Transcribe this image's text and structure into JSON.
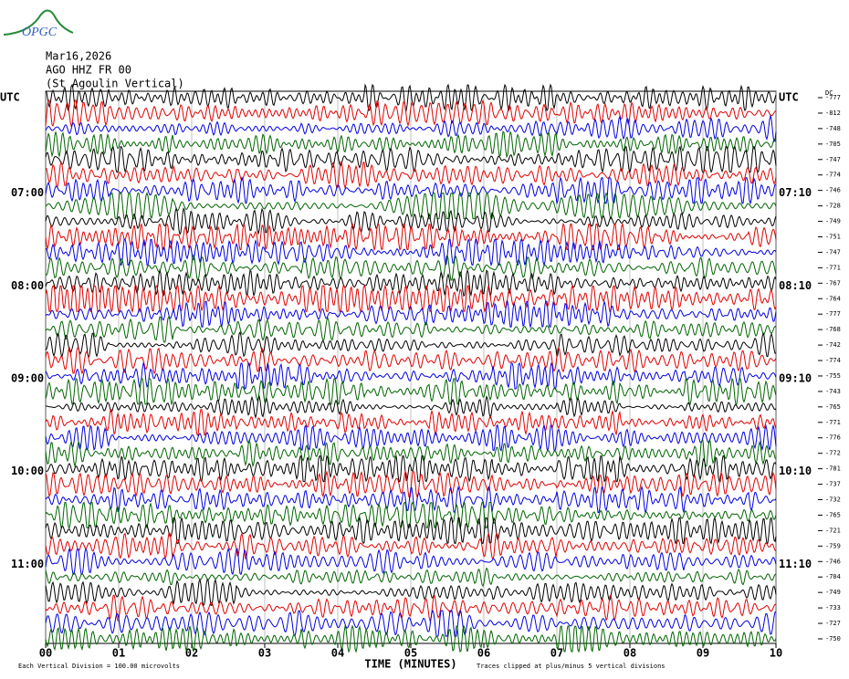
{
  "logo": "OPGC",
  "chart_data": {
    "type": "helicorder",
    "header": [
      "Mar16,2026",
      "AGO HHZ FR 00",
      "(St Agoulin Vertical)"
    ],
    "dc_label": "DC",
    "xlabel": "TIME (MINUTES)",
    "xlim": [
      0,
      10
    ],
    "xticks": [
      {
        "value": 0,
        "label": "00"
      },
      {
        "value": 1,
        "label": "01"
      },
      {
        "value": 2,
        "label": "02"
      },
      {
        "value": 3,
        "label": "03"
      },
      {
        "value": 4,
        "label": "04"
      },
      {
        "value": 5,
        "label": "05"
      },
      {
        "value": 6,
        "label": "06"
      },
      {
        "value": 7,
        "label": "07"
      },
      {
        "value": 8,
        "label": "08"
      },
      {
        "value": 9,
        "label": "09"
      },
      {
        "value": 10,
        "label": "10"
      }
    ],
    "grid": true,
    "colors": [
      "#000000",
      "#e00000",
      "#0000e0",
      "#006400"
    ],
    "row_labels_left": [
      "UTC",
      null,
      null,
      null,
      null,
      null,
      "07:00",
      null,
      null,
      null,
      null,
      null,
      "08:00",
      null,
      null,
      null,
      null,
      null,
      "09:00",
      null,
      null,
      null,
      null,
      null,
      "10:00",
      null,
      null,
      null,
      null,
      null,
      "11:00",
      null,
      null,
      null,
      null,
      null
    ],
    "row_labels_right": [
      "UTC",
      null,
      null,
      null,
      null,
      null,
      "07:10",
      null,
      null,
      null,
      null,
      null,
      "08:10",
      null,
      null,
      null,
      null,
      null,
      "09:10",
      null,
      null,
      null,
      null,
      null,
      "10:10",
      null,
      null,
      null,
      null,
      null,
      "11:10",
      null,
      null,
      null,
      null,
      null
    ],
    "dc_offsets": [
      -777,
      -812,
      -748,
      -705,
      -747,
      -774,
      -746,
      -728,
      -749,
      -751,
      -747,
      -771,
      -767,
      -764,
      -777,
      -768,
      -742,
      -774,
      -755,
      -743,
      -765,
      -771,
      -776,
      -772,
      -781,
      -737,
      -732,
      -765,
      -721,
      -759,
      -746,
      -704,
      -749,
      -733,
      -727,
      -750
    ],
    "footer_left": "Each Vertical Division =  100.00 microvolts",
    "footer_right": "Traces clipped at plus/minus 5 vertical divisions"
  }
}
